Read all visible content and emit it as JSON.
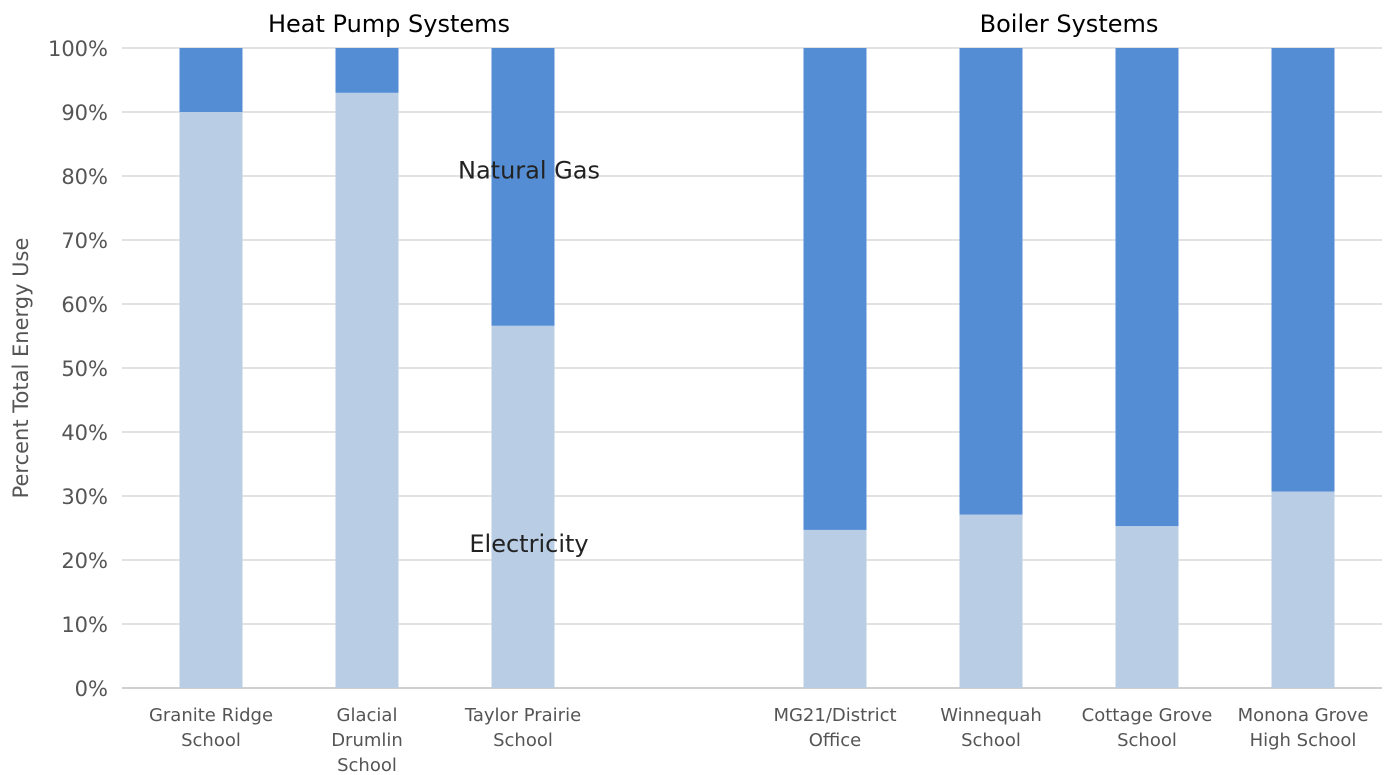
{
  "chart_data": {
    "type": "bar",
    "stacked": true,
    "ylabel": "Percent Total Energy Use",
    "ylim": [
      0,
      100
    ],
    "yticks": [
      "0%",
      "10%",
      "20%",
      "30%",
      "40%",
      "50%",
      "60%",
      "70%",
      "80%",
      "90%",
      "100%"
    ],
    "grid": true,
    "groups": [
      {
        "title": "Heat Pump Systems",
        "category_indices": [
          0,
          1,
          2
        ]
      },
      {
        "title": "Boiler Systems",
        "category_indices": [
          3,
          4,
          5,
          6
        ]
      }
    ],
    "categories": [
      [
        "Granite Ridge",
        "School"
      ],
      [
        "Glacial",
        "Drumlin",
        "School"
      ],
      [
        "Taylor Prairie",
        "School"
      ],
      [
        "MG21/District",
        "Office"
      ],
      [
        "Winnequah",
        "School"
      ],
      [
        "Cottage Grove",
        "School"
      ],
      [
        "Monona Grove",
        "High School"
      ]
    ],
    "series": [
      {
        "name": "Electricity",
        "color": "#b9cde5",
        "values": [
          90,
          93,
          56.6,
          24.7,
          27.1,
          25.3,
          30.7
        ]
      },
      {
        "name": "Natural Gas",
        "color": "#548dd4",
        "values": [
          10,
          7,
          43.4,
          75.3,
          72.9,
          74.7,
          69.3
        ]
      }
    ],
    "annotations": [
      {
        "text": "Natural Gas",
        "series": "Natural Gas",
        "category_index": 2
      },
      {
        "text": "Electricity",
        "series": "Electricity",
        "category_index": 2
      }
    ]
  }
}
